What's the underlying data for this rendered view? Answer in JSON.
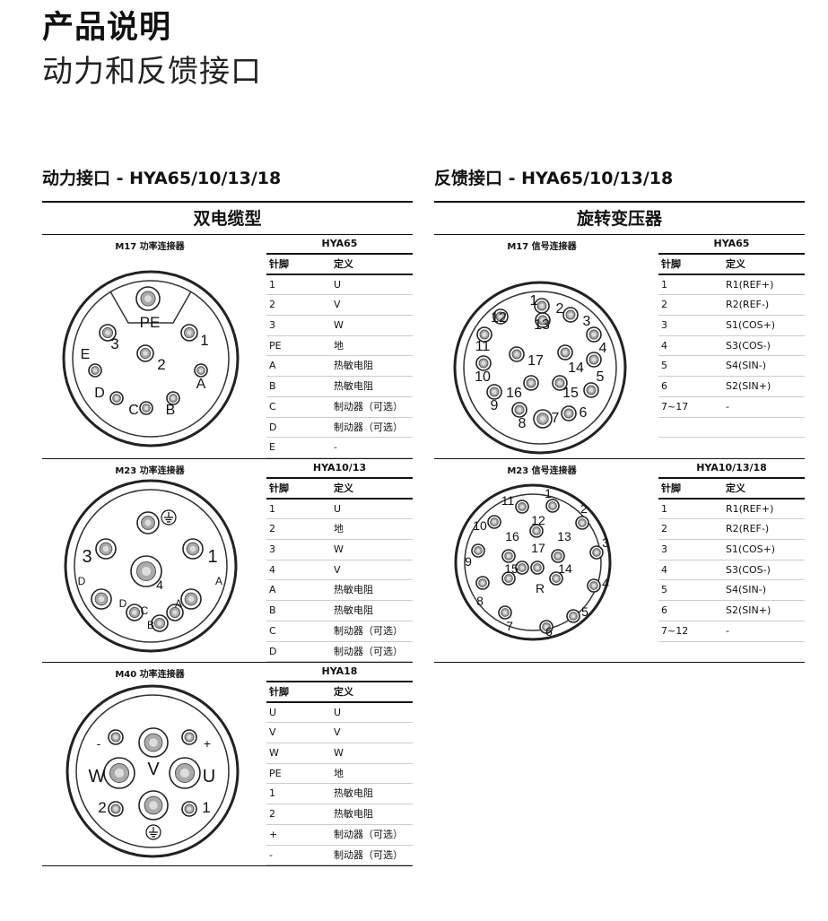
{
  "page": {
    "title": "产品说明",
    "subtitle": "动力和反馈接口"
  },
  "left": {
    "heading": "动力接口 - HYA65/10/13/18",
    "subheading": "双电缆型",
    "blocks": [
      {
        "diagram_title": "M17 功率连接器",
        "model": "HYA65",
        "col_pin": "针脚",
        "col_def": "定义",
        "rows": [
          [
            "1",
            "U"
          ],
          [
            "2",
            "V"
          ],
          [
            "3",
            "W"
          ],
          [
            "PE",
            "地"
          ],
          [
            "A",
            "热敏电阻"
          ],
          [
            "B",
            "热敏电阻"
          ],
          [
            "C",
            "制动器（可选）"
          ],
          [
            "D",
            "制动器（可选）"
          ],
          [
            "E",
            "-"
          ]
        ],
        "labels": [
          "PE",
          "1",
          "2",
          "3",
          "E",
          "A",
          "B",
          "C",
          "D"
        ]
      },
      {
        "diagram_title": "M23 功率连接器",
        "model": "HYA10/13",
        "col_pin": "针脚",
        "col_def": "定义",
        "rows": [
          [
            "1",
            "U"
          ],
          [
            "2",
            "地"
          ],
          [
            "3",
            "W"
          ],
          [
            "4",
            "V"
          ],
          [
            "A",
            "热敏电阻"
          ],
          [
            "B",
            "热敏电阻"
          ],
          [
            "C",
            "制动器（可选）"
          ],
          [
            "D",
            "制动器（可选）"
          ]
        ],
        "labels": [
          "3",
          "1",
          "4",
          "D",
          "A",
          "D",
          "C",
          "B",
          "A"
        ]
      },
      {
        "diagram_title": "M40 功率连接器",
        "model": "HYA18",
        "col_pin": "针脚",
        "col_def": "定义",
        "rows": [
          [
            "U",
            "U"
          ],
          [
            "V",
            "V"
          ],
          [
            "W",
            "W"
          ],
          [
            "PE",
            "地"
          ],
          [
            "1",
            "热敏电阻"
          ],
          [
            "2",
            "热敏电阻"
          ],
          [
            "+",
            "制动器（可选）"
          ],
          [
            "-",
            "制动器（可选）"
          ]
        ],
        "labels": [
          "-",
          "+",
          "V",
          "W",
          "U",
          "2",
          "1"
        ]
      }
    ]
  },
  "right": {
    "heading": "反馈接口 - HYA65/10/13/18",
    "subheading": "旋转变压器",
    "blocks": [
      {
        "diagram_title": "M17 信号连接器",
        "model": "HYA65",
        "col_pin": "针脚",
        "col_def": "定义",
        "rows": [
          [
            "1",
            "R1(REF+)"
          ],
          [
            "2",
            "R2(REF-)"
          ],
          [
            "3",
            "S1(COS+)"
          ],
          [
            "4",
            "S3(COS-)"
          ],
          [
            "5",
            "S4(SIN-)"
          ],
          [
            "6",
            "S2(SIN+)"
          ],
          [
            "7~17",
            "-"
          ],
          [
            "",
            ""
          ]
        ],
        "labels": [
          "1",
          "2",
          "3",
          "4",
          "5",
          "6",
          "7",
          "8",
          "9",
          "10",
          "11",
          "12",
          "13",
          "14",
          "15",
          "16",
          "17"
        ]
      },
      {
        "diagram_title": "M23 信号连接器",
        "model": "HYA10/13/18",
        "col_pin": "针脚",
        "col_def": "定义",
        "rows": [
          [
            "1",
            "R1(REF+)"
          ],
          [
            "2",
            "R2(REF-)"
          ],
          [
            "3",
            "S1(COS+)"
          ],
          [
            "4",
            "S3(COS-)"
          ],
          [
            "5",
            "S4(SIN-)"
          ],
          [
            "6",
            "S2(SIN+)"
          ],
          [
            "7~12",
            "-"
          ]
        ],
        "labels": [
          "1",
          "2",
          "3",
          "4",
          "5",
          "6",
          "7",
          "8",
          "9",
          "10",
          "11",
          "12",
          "13",
          "14",
          "15",
          "16",
          "17",
          "R"
        ]
      }
    ]
  }
}
